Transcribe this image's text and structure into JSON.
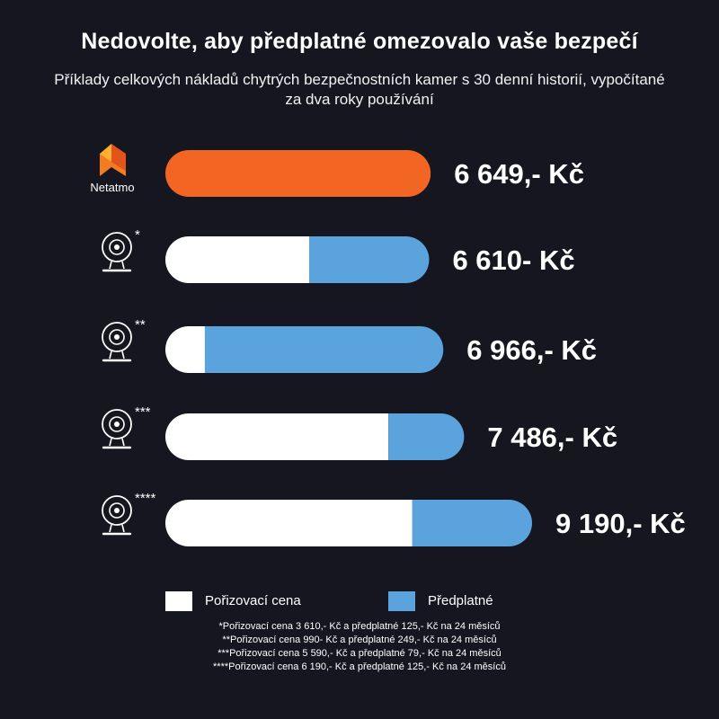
{
  "header": {
    "title": "Nedovolte, aby předplatné omezovalo vaše bezpečí",
    "subtitle": "Příklady celkových nákladů chytrých bezpečnostních kamer s 30 denní historií, vypočítané za dva roky používání"
  },
  "colors": {
    "background": "#15161f",
    "netatmo": "#f26522",
    "purchase": "#ffffff",
    "subscription": "#5aa3dc",
    "text": "#ffffff"
  },
  "chart_data": {
    "type": "bar",
    "orientation": "horizontal",
    "stacked": true,
    "unit": "Kč",
    "categories": [
      "Netatmo",
      "*",
      "**",
      "***",
      "****"
    ],
    "series": [
      {
        "name": "Pořizovací cena",
        "values": [
          6649,
          3610,
          990,
          5590,
          6190
        ]
      },
      {
        "name": "Předplatné",
        "values": [
          0,
          3000,
          5976,
          1896,
          3000
        ]
      }
    ],
    "value_labels": [
      "6 649,- Kč",
      "6 610- Kč",
      "6 966,- Kč",
      "7 486,- Kč",
      "9 190,- Kč"
    ],
    "icons": [
      "netatmo-logo",
      "camera-icon",
      "camera-icon",
      "camera-icon",
      "camera-icon"
    ],
    "logo_text": "Netatmo",
    "xlim": [
      0,
      9190
    ],
    "grid": false,
    "legend_position": "bottom"
  },
  "legend": {
    "purchase_label": "Pořizovací cena",
    "subscription_label": "Předplatné"
  },
  "footnotes": [
    "*Pořizovací cena 3 610,- Kč a předplatné 125,- Kč na 24 měsíců",
    "**Pořizovací cena 990- Kč a předplatné 249,- Kč na 24 měsíců",
    "***Pořizovací cena 5 590,- Kč a předplatné 79,- Kč na 24 měsíců",
    "****Pořizovací cena 6 190,- Kč a předplatné 125,- Kč na 24 měsíců"
  ]
}
